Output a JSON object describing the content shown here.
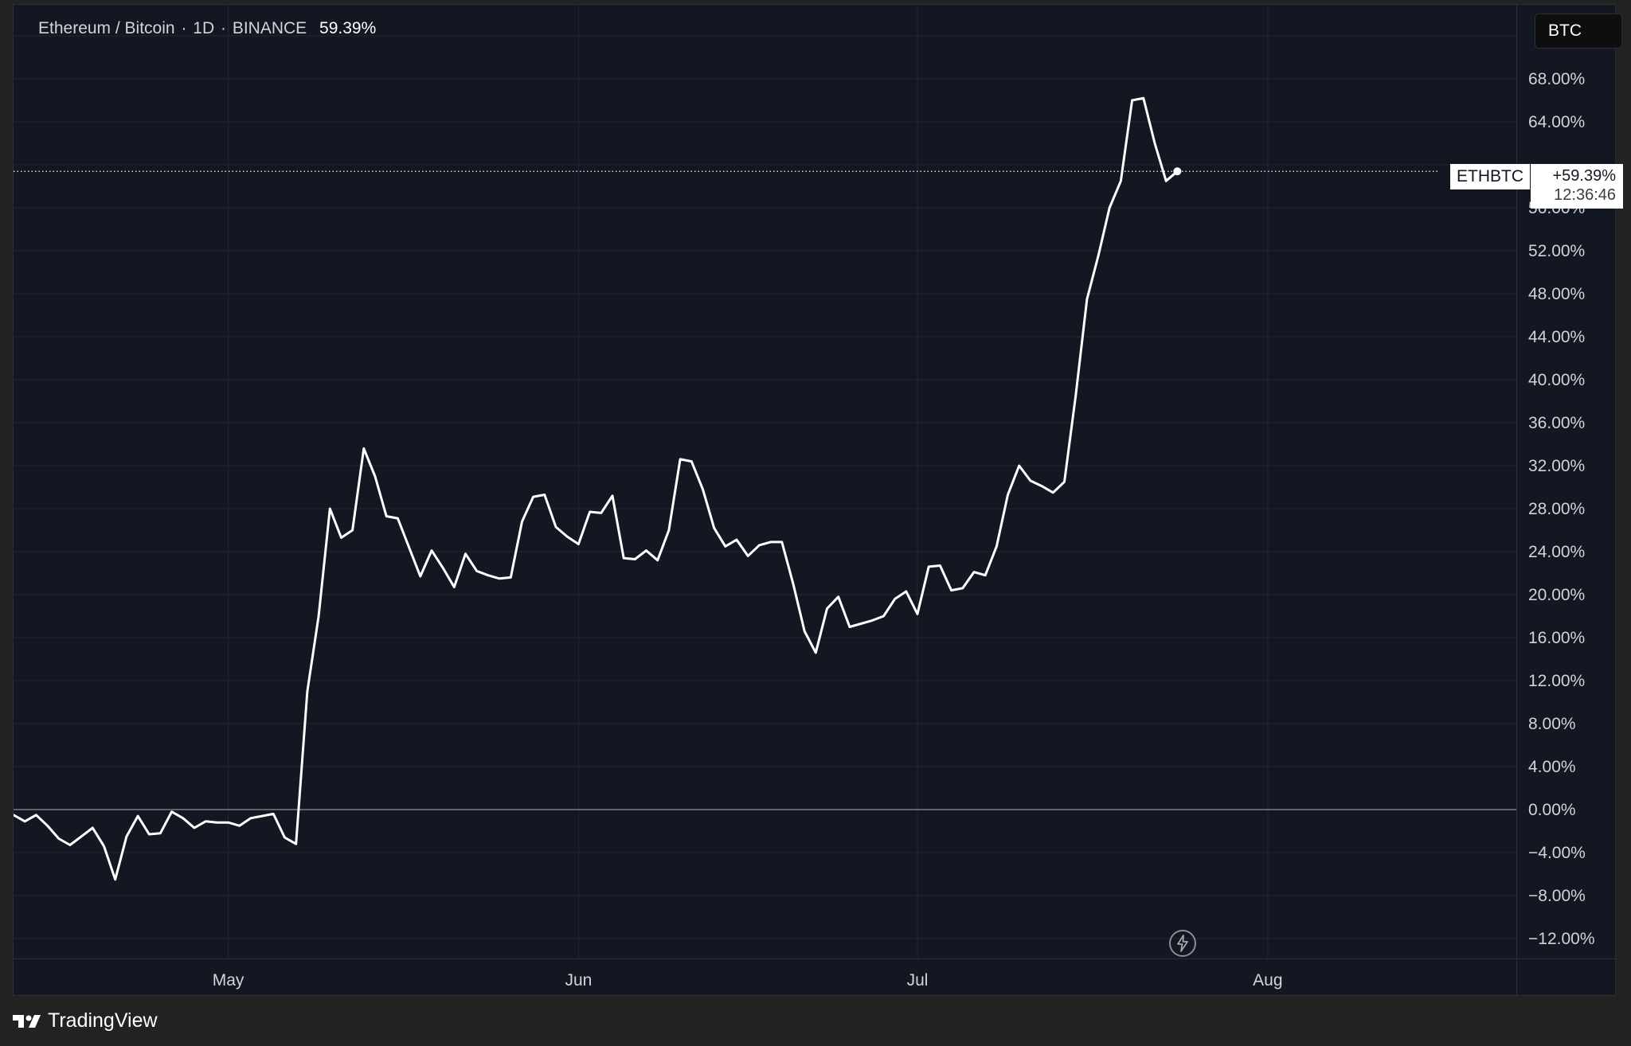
{
  "legend": {
    "symbol_name": "Ethereum / Bitcoin",
    "interval": "1D",
    "exchange": "BINANCE",
    "value": "59.39%"
  },
  "currency_button": {
    "label": "BTC"
  },
  "last_price": {
    "ticker": "ETHBTC",
    "value": "+59.39%",
    "countdown": "12:36:46"
  },
  "brand": {
    "name": "TradingView"
  },
  "colors": {
    "background": "#131722",
    "line": "#ffffff",
    "grid": "#232733",
    "axis_text": "#d1d4dc"
  },
  "chart_data": {
    "type": "line",
    "title": "Ethereum / Bitcoin · 1D · BINANCE",
    "y_unit": "%",
    "ylim": [
      -14,
      72
    ],
    "y_ticks": [
      68,
      64,
      56,
      52,
      48,
      44,
      40,
      36,
      32,
      28,
      24,
      20,
      16,
      12,
      8,
      4,
      0,
      -4,
      -8,
      -12
    ],
    "y_tick_labels": [
      "68.00%",
      "64.00%",
      "56.00%",
      "52.00%",
      "48.00%",
      "44.00%",
      "40.00%",
      "36.00%",
      "32.00%",
      "28.00%",
      "24.00%",
      "20.00%",
      "16.00%",
      "12.00%",
      "8.00%",
      "4.00%",
      "0.00%",
      "−4.00%",
      "−8.00%",
      "−12.00%"
    ],
    "x_tick_labels": [
      {
        "date": "2024-05-01",
        "label": "May"
      },
      {
        "date": "2024-06-01",
        "label": "Jun"
      },
      {
        "date": "2024-07-01",
        "label": "Jul"
      },
      {
        "date": "2024-08-01",
        "label": "Aug"
      }
    ],
    "xlim": [
      "2024-04-12",
      "2024-08-23"
    ],
    "grid": true,
    "zero_line": true,
    "last_value_line": 59.39,
    "series": [
      {
        "name": "ETHBTC",
        "dates": [
          "2024-04-12",
          "2024-04-13",
          "2024-04-14",
          "2024-04-15",
          "2024-04-16",
          "2024-04-17",
          "2024-04-18",
          "2024-04-19",
          "2024-04-20",
          "2024-04-21",
          "2024-04-22",
          "2024-04-23",
          "2024-04-24",
          "2024-04-25",
          "2024-04-26",
          "2024-04-27",
          "2024-04-28",
          "2024-04-29",
          "2024-04-30",
          "2024-05-01",
          "2024-05-02",
          "2024-05-03",
          "2024-05-04",
          "2024-05-05",
          "2024-05-06",
          "2024-05-07",
          "2024-05-08",
          "2024-05-09",
          "2024-05-10",
          "2024-05-11",
          "2024-05-12",
          "2024-05-13",
          "2024-05-14",
          "2024-05-15",
          "2024-05-16",
          "2024-05-17",
          "2024-05-18",
          "2024-05-19",
          "2024-05-20",
          "2024-05-21",
          "2024-05-22",
          "2024-05-23",
          "2024-05-24",
          "2024-05-25",
          "2024-05-26",
          "2024-05-27",
          "2024-05-28",
          "2024-05-29",
          "2024-05-30",
          "2024-05-31",
          "2024-06-01",
          "2024-06-02",
          "2024-06-03",
          "2024-06-04",
          "2024-06-05",
          "2024-06-06",
          "2024-06-07",
          "2024-06-08",
          "2024-06-09",
          "2024-06-10",
          "2024-06-11",
          "2024-06-12",
          "2024-06-13",
          "2024-06-14",
          "2024-06-15",
          "2024-06-16",
          "2024-06-17",
          "2024-06-18",
          "2024-06-19",
          "2024-06-20",
          "2024-06-21",
          "2024-06-22",
          "2024-06-23",
          "2024-06-24",
          "2024-06-25",
          "2024-06-26",
          "2024-06-27",
          "2024-06-28",
          "2024-06-29",
          "2024-06-30",
          "2024-07-01",
          "2024-07-02",
          "2024-07-03",
          "2024-07-04",
          "2024-07-05",
          "2024-07-06",
          "2024-07-07",
          "2024-07-08",
          "2024-07-09",
          "2024-07-10",
          "2024-07-11",
          "2024-07-12",
          "2024-07-13",
          "2024-07-14",
          "2024-07-15",
          "2024-07-16",
          "2024-07-17",
          "2024-07-18",
          "2024-07-19",
          "2024-07-20",
          "2024-07-21",
          "2024-07-22",
          "2024-07-23",
          "2024-07-24"
        ],
        "values": [
          -0.5,
          -1.1,
          -0.5,
          -1.5,
          -2.7,
          -3.3,
          -2.5,
          -1.7,
          -3.4,
          -6.5,
          -2.5,
          -0.6,
          -2.3,
          -2.2,
          -0.2,
          -0.8,
          -1.7,
          -1.1,
          -1.2,
          -1.2,
          -1.5,
          -0.8,
          -0.6,
          -0.4,
          -2.6,
          -3.2,
          11.0,
          18.0,
          28.0,
          25.3,
          26.0,
          33.6,
          31.0,
          27.3,
          27.1,
          24.4,
          21.7,
          24.1,
          22.5,
          20.7,
          23.8,
          22.2,
          21.8,
          21.5,
          21.6,
          26.8,
          29.1,
          29.3,
          26.3,
          25.4,
          24.7,
          27.7,
          27.6,
          29.2,
          23.4,
          23.3,
          24.1,
          23.2,
          26.0,
          32.6,
          32.4,
          29.8,
          26.2,
          24.5,
          25.1,
          23.6,
          24.6,
          24.9,
          24.9,
          21.0,
          16.6,
          14.6,
          18.7,
          19.8,
          17.0,
          17.3,
          17.6,
          18.0,
          19.6,
          20.3,
          18.2,
          22.6,
          22.7,
          20.4,
          20.6,
          22.1,
          21.8,
          24.5,
          29.3,
          32.0,
          30.6,
          30.1,
          29.5,
          30.5,
          38.5,
          47.5,
          51.5,
          56.0,
          58.5,
          66.0,
          66.2,
          62.0,
          58.5,
          59.39
        ]
      }
    ]
  }
}
